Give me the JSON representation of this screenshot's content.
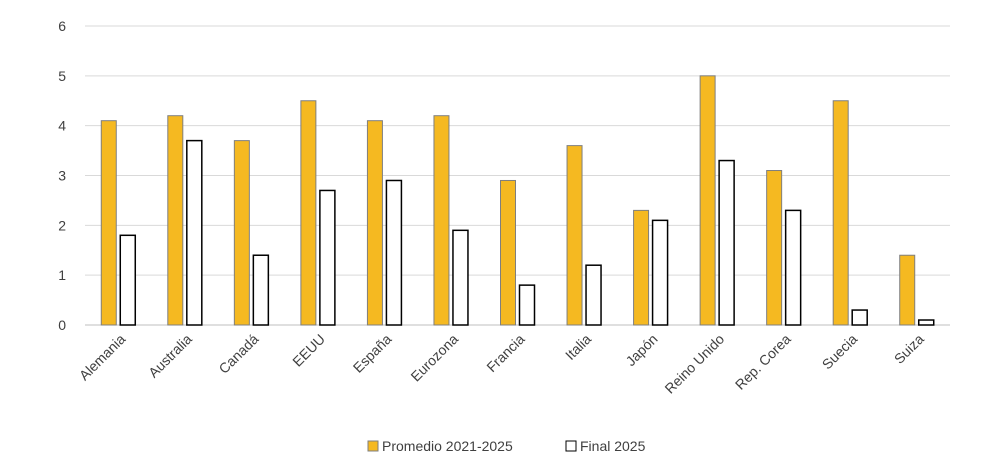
{
  "chart_data": {
    "type": "bar",
    "categories": [
      "Alemania",
      "Australia",
      "Canadá",
      "EEUU",
      "España",
      "Eurozona",
      "Francia",
      "Italia",
      "Japón",
      "Reino Unido",
      "Rep. Corea",
      "Suecia",
      "Suiza"
    ],
    "series": [
      {
        "name": "Promedio 2021-2025",
        "color": "#F5B921",
        "values": [
          4.1,
          4.2,
          3.7,
          4.5,
          4.1,
          4.2,
          2.9,
          3.6,
          2.3,
          5.0,
          3.1,
          4.5,
          1.4
        ]
      },
      {
        "name": "Final 2025",
        "color": "#FFFFFF",
        "values": [
          1.8,
          3.7,
          1.4,
          2.7,
          2.9,
          1.9,
          0.8,
          1.2,
          2.1,
          3.3,
          2.3,
          0.3,
          0.1
        ]
      }
    ],
    "ylim": [
      0,
      6
    ],
    "yticks": [
      "0",
      "1",
      "2",
      "3",
      "4",
      "5",
      "6"
    ],
    "grid": true,
    "legend_position": "bottom"
  }
}
